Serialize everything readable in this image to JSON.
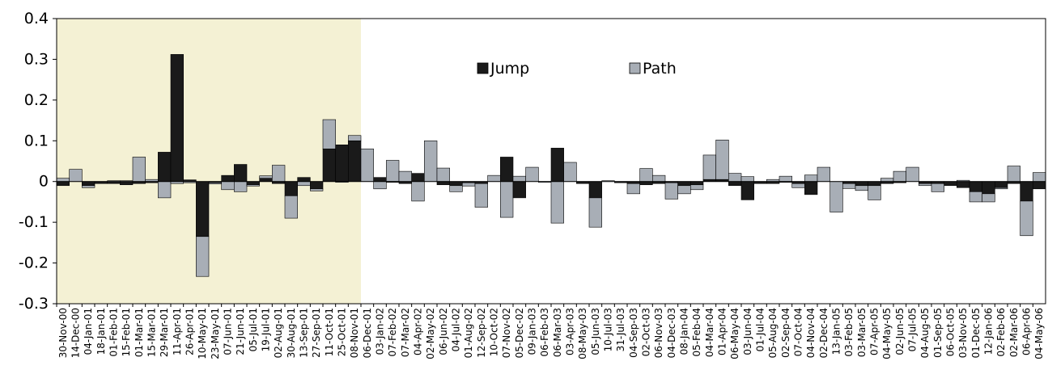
{
  "chart_data": {
    "type": "bar",
    "title": "",
    "xlabel": "",
    "ylabel": "",
    "ylim": [
      -0.3,
      0.4
    ],
    "yticks": [
      "0.4",
      "0.3",
      "0.2",
      "0.1",
      "0",
      "-0.1",
      "-0.2",
      "-0.3"
    ],
    "grid": false,
    "legend_position": "top-center",
    "highlight": {
      "from_category": "30-Nov-00",
      "to_category": "08-Nov-01",
      "color": "#f4f1d4"
    },
    "categories": [
      "30-Nov-00",
      "14-Dec-00",
      "04-Jan-01",
      "18-Jan-01",
      "01-Feb-01",
      "15-Feb-01",
      "01-Mar-01",
      "15-Mar-01",
      "29-Mar-01",
      "11-Apr-01",
      "26-Apr-01",
      "10-May-01",
      "23-May-01",
      "07-Jun-01",
      "21-Jun-01",
      "05-Jul-01",
      "19-Jul-01",
      "02-Aug-01",
      "30-Aug-01",
      "13-Sep-01",
      "27-Sep-01",
      "11-Oct-01",
      "25-Oct-01",
      "08-Nov-01",
      "06-Dec-01",
      "03-Jan-02",
      "07-Feb-02",
      "07-Mar-02",
      "04-Apr-02",
      "02-May-02",
      "06-Jun-02",
      "04-Jul-02",
      "01-Aug-02",
      "12-Sep-02",
      "10-Oct-02",
      "07-Nov-02",
      "05-Dec-02",
      "09-Jan-03",
      "06-Feb-03",
      "06-Mar-03",
      "03-Apr-03",
      "08-May-03",
      "05-Jun-03",
      "10-Jul-03",
      "31-Jul-03",
      "04-Sep-03",
      "02-Oct-03",
      "06-Nov-03",
      "04-Dec-03",
      "08-Jan-04",
      "05-Feb-04",
      "04-Mar-04",
      "01-Apr-04",
      "06-May-04",
      "03-Jun-04",
      "01-Jul-04",
      "05-Aug-04",
      "02-Sep-04",
      "07-Oct-04",
      "04-Nov-04",
      "02-Dec-04",
      "13-Jan-05",
      "03-Feb-05",
      "03-Mar-05",
      "07-Apr-05",
      "04-May-05",
      "02-Jun-05",
      "07-Jul-05",
      "04-Aug-05",
      "01-Sep-05",
      "06-Oct-05",
      "03-Nov-05",
      "01-Dec-05",
      "12-Jan-06",
      "02-Feb-06",
      "02-Mar-06",
      "06-Apr-06",
      "04-May-06"
    ],
    "series": [
      {
        "name": "Jump",
        "color": "#1a1a1a",
        "values": [
          -0.01,
          0,
          -0.01,
          -0.005,
          -0.005,
          -0.008,
          -0.005,
          -0.003,
          0.072,
          0.312,
          0.004,
          -0.135,
          -0.003,
          0.015,
          0.042,
          -0.008,
          0.008,
          -0.005,
          -0.035,
          0.01,
          -0.018,
          0.08,
          0.09,
          0.1,
          0,
          0.01,
          -0.002,
          -0.005,
          0.02,
          0,
          -0.008,
          -0.01,
          -0.003,
          -0.005,
          0,
          0.06,
          -0.04,
          0,
          0,
          0.082,
          0,
          -0.005,
          -0.04,
          0,
          -0.003,
          -0.005,
          -0.008,
          -0.005,
          -0.003,
          -0.01,
          -0.008,
          0.005,
          0.005,
          -0.01,
          -0.045,
          -0.005,
          -0.005,
          -0.002,
          -0.005,
          -0.032,
          0,
          0,
          -0.005,
          -0.01,
          -0.01,
          -0.005,
          -0.003,
          0,
          -0.005,
          -0.005,
          -0.01,
          -0.015,
          -0.025,
          -0.03,
          -0.015,
          -0.005,
          -0.048,
          -0.018
        ]
      },
      {
        "name": "Path",
        "color": "#a8aeb6",
        "values": [
          0.008,
          0.03,
          -0.005,
          0,
          0.002,
          0.002,
          0.06,
          0.005,
          -0.04,
          -0.005,
          -0.003,
          -0.098,
          -0.003,
          -0.02,
          -0.025,
          -0.003,
          0.006,
          0.04,
          -0.055,
          -0.01,
          -0.005,
          0.072,
          -0.002,
          0.013,
          0.08,
          -0.018,
          0.052,
          0.025,
          -0.048,
          0.1,
          0.033,
          -0.015,
          -0.008,
          -0.058,
          0.015,
          -0.088,
          0.013,
          0.035,
          -0.002,
          -0.102,
          0.047,
          0,
          -0.072,
          0.002,
          0,
          -0.025,
          0.032,
          0.015,
          -0.04,
          -0.02,
          -0.012,
          0.06,
          0.097,
          0.02,
          0.012,
          0,
          0.005,
          0.013,
          -0.01,
          0.016,
          0.035,
          -0.075,
          -0.012,
          -0.012,
          -0.035,
          0.008,
          0.025,
          0.035,
          -0.005,
          -0.02,
          0,
          0.003,
          -0.025,
          -0.02,
          -0.003,
          0.038,
          -0.085,
          0.022
        ]
      }
    ]
  }
}
